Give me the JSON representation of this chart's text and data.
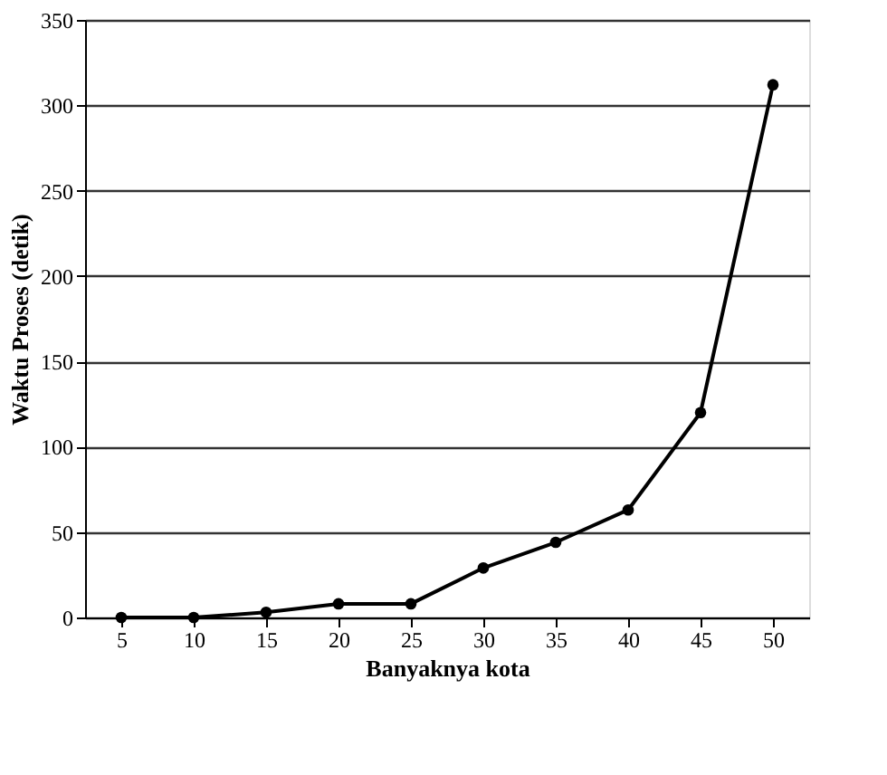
{
  "chart_data": {
    "type": "line",
    "xlabel": "Banyaknya kota",
    "ylabel": "Waktu Proses (detik)",
    "categories": [
      "5",
      "10",
      "15",
      "20",
      "25",
      "30",
      "35",
      "40",
      "45",
      "50"
    ],
    "series": [
      {
        "color": "#000000",
        "values": [
          0,
          0,
          3,
          8,
          8,
          29,
          44,
          63,
          120,
          312
        ]
      }
    ],
    "ylim": [
      0,
      350
    ],
    "yticks": [
      0,
      50,
      100,
      150,
      200,
      250,
      300,
      350
    ],
    "grid": "y",
    "marker": "circle",
    "line_style": "solid"
  }
}
